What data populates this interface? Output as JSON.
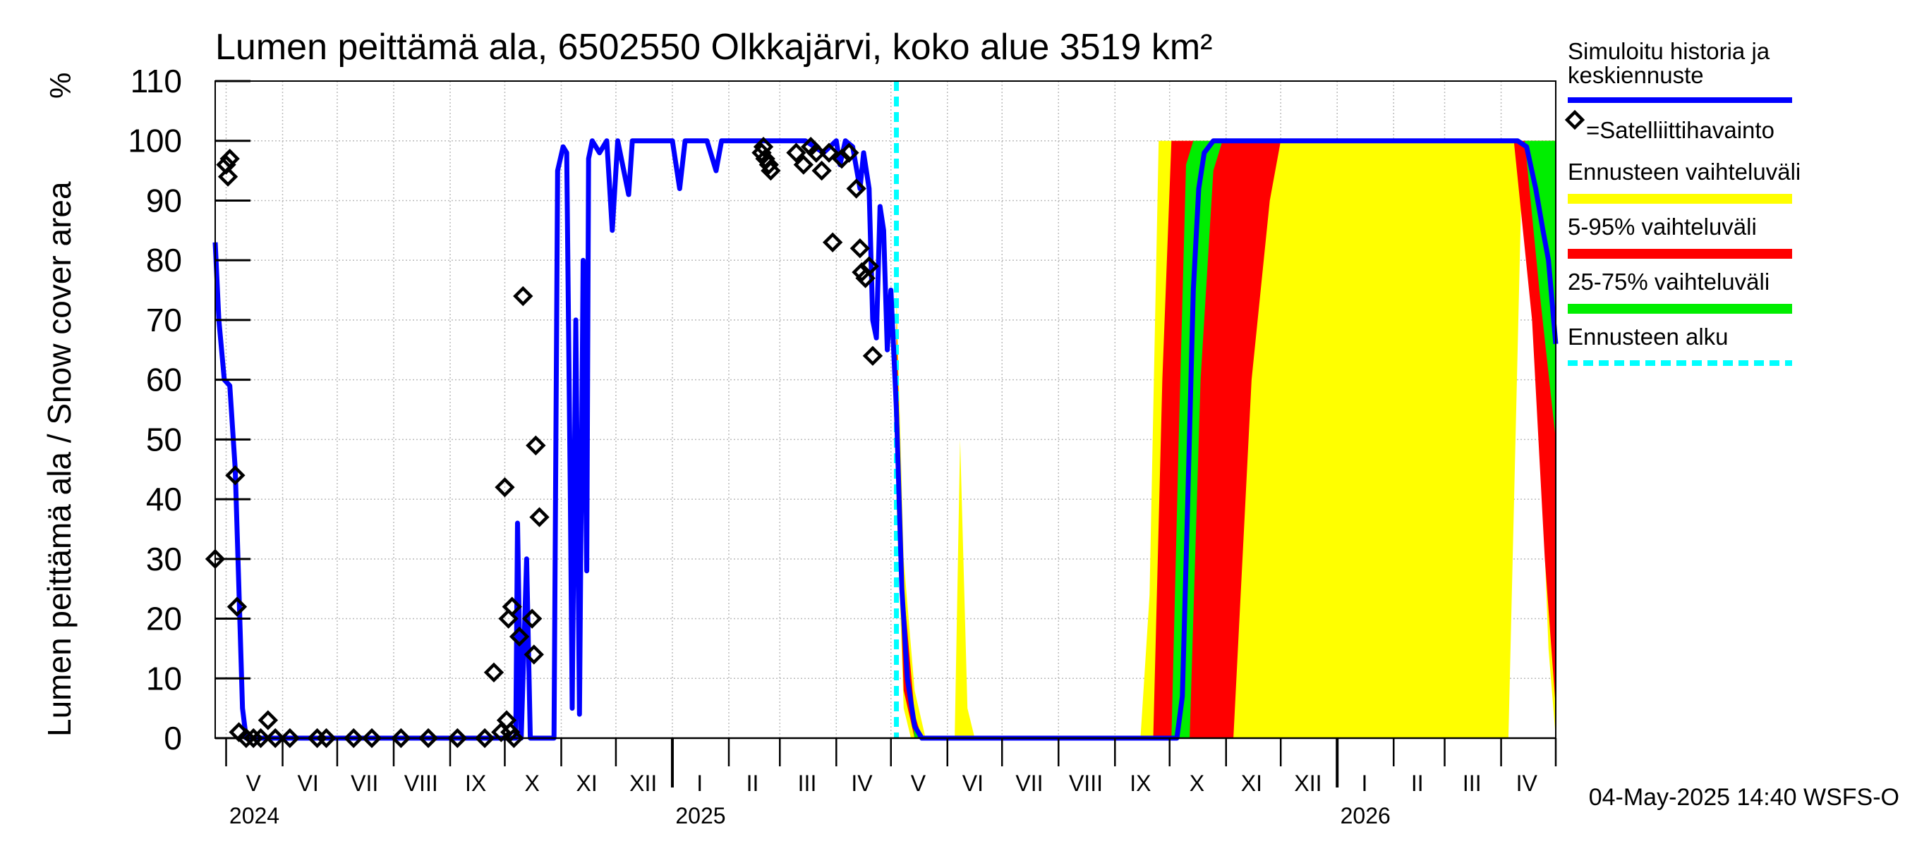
{
  "chart_data": {
    "type": "area",
    "title": "Lumen peittämä ala, 6502550 Olkkajärvi, koko alue 3519 km²",
    "ylabel": "Lumen peittämä ala / Snow cover area",
    "yunit": "%",
    "ylim": [
      0,
      110
    ],
    "yticks": [
      0,
      10,
      20,
      30,
      40,
      50,
      60,
      70,
      80,
      90,
      100,
      110
    ],
    "xlim": [
      "2024-04-25",
      "2026-05-01"
    ],
    "month_labels": [
      {
        "label": "V",
        "date": "2024-05-16"
      },
      {
        "label": "VI",
        "date": "2024-06-15"
      },
      {
        "label": "VII",
        "date": "2024-07-16"
      },
      {
        "label": "VIII",
        "date": "2024-08-16"
      },
      {
        "label": "IX",
        "date": "2024-09-15"
      },
      {
        "label": "X",
        "date": "2024-10-16"
      },
      {
        "label": "XI",
        "date": "2024-11-15"
      },
      {
        "label": "XII",
        "date": "2024-12-16"
      },
      {
        "label": "I",
        "date": "2025-01-16"
      },
      {
        "label": "II",
        "date": "2025-02-14"
      },
      {
        "label": "III",
        "date": "2025-03-16"
      },
      {
        "label": "IV",
        "date": "2025-04-15"
      },
      {
        "label": "V",
        "date": "2025-05-16"
      },
      {
        "label": "VI",
        "date": "2025-06-15"
      },
      {
        "label": "VII",
        "date": "2025-07-16"
      },
      {
        "label": "VIII",
        "date": "2025-08-16"
      },
      {
        "label": "IX",
        "date": "2025-09-15"
      },
      {
        "label": "X",
        "date": "2025-10-16"
      },
      {
        "label": "XI",
        "date": "2025-11-15"
      },
      {
        "label": "XII",
        "date": "2025-12-16"
      },
      {
        "label": "I",
        "date": "2026-01-16"
      },
      {
        "label": "II",
        "date": "2026-02-14"
      },
      {
        "label": "III",
        "date": "2026-03-16"
      },
      {
        "label": "IV",
        "date": "2026-04-15"
      }
    ],
    "year_labels": [
      {
        "label": "2024",
        "date": "2024-05-01"
      },
      {
        "label": "2025",
        "date": "2025-01-01"
      },
      {
        "label": "2026",
        "date": "2026-01-01"
      }
    ],
    "forecast_start": "2025-05-04",
    "legend": [
      {
        "label": "Simuloitu historia ja keskiennuste",
        "color": "#0000ff",
        "kind": "line"
      },
      {
        "label": "=Satelliittihavainto",
        "color": "#000000",
        "kind": "diamond"
      },
      {
        "label": "Ennusteen vaihteluväli",
        "color": "#ffff00",
        "kind": "band"
      },
      {
        "label": "5-95% vaihteluväli",
        "color": "#ff0000",
        "kind": "band"
      },
      {
        "label": "25-75% vaihteluväli",
        "color": "#00ee00",
        "kind": "band"
      },
      {
        "label": "Ennusteen alku",
        "color": "#00ffff",
        "kind": "dashed"
      }
    ],
    "legend_position": "right",
    "grid": true,
    "footer": "04-May-2025 14:40 WSFS-O",
    "series": [
      {
        "name": "Simuloitu historia ja keskiennuste",
        "points": [
          [
            "2024-04-25",
            83
          ],
          [
            "2024-04-27",
            70
          ],
          [
            "2024-04-30",
            60
          ],
          [
            "2024-05-03",
            59
          ],
          [
            "2024-05-06",
            45
          ],
          [
            "2024-05-08",
            25
          ],
          [
            "2024-05-10",
            5
          ],
          [
            "2024-05-12",
            0
          ],
          [
            "2024-10-07",
            0
          ],
          [
            "2024-10-08",
            36
          ],
          [
            "2024-10-10",
            0
          ],
          [
            "2024-10-13",
            30
          ],
          [
            "2024-10-15",
            0
          ],
          [
            "2024-10-28",
            0
          ],
          [
            "2024-10-30",
            95
          ],
          [
            "2024-11-02",
            99
          ],
          [
            "2024-11-04",
            98
          ],
          [
            "2024-11-06",
            40
          ],
          [
            "2024-11-07",
            5
          ],
          [
            "2024-11-09",
            70
          ],
          [
            "2024-11-11",
            4
          ],
          [
            "2024-11-13",
            80
          ],
          [
            "2024-11-15",
            28
          ],
          [
            "2024-11-16",
            97
          ],
          [
            "2024-11-18",
            100
          ],
          [
            "2024-11-22",
            98
          ],
          [
            "2024-11-26",
            100
          ],
          [
            "2024-11-29",
            85
          ],
          [
            "2024-12-02",
            100
          ],
          [
            "2024-12-08",
            91
          ],
          [
            "2024-12-10",
            100
          ],
          [
            "2024-12-20",
            100
          ],
          [
            "2025-01-01",
            100
          ],
          [
            "2025-01-05",
            92
          ],
          [
            "2025-01-08",
            100
          ],
          [
            "2025-01-20",
            100
          ],
          [
            "2025-01-25",
            95
          ],
          [
            "2025-01-28",
            100
          ],
          [
            "2025-03-15",
            100
          ],
          [
            "2025-03-25",
            98
          ],
          [
            "2025-04-01",
            100
          ],
          [
            "2025-04-03",
            96
          ],
          [
            "2025-04-06",
            100
          ],
          [
            "2025-04-10",
            99
          ],
          [
            "2025-04-14",
            92
          ],
          [
            "2025-04-16",
            98
          ],
          [
            "2025-04-19",
            92
          ],
          [
            "2025-04-21",
            70
          ],
          [
            "2025-04-23",
            67
          ],
          [
            "2025-04-25",
            89
          ],
          [
            "2025-04-27",
            85
          ],
          [
            "2025-04-29",
            65
          ],
          [
            "2025-05-01",
            75
          ],
          [
            "2025-05-04",
            55
          ],
          [
            "2025-05-07",
            25
          ],
          [
            "2025-05-10",
            10
          ],
          [
            "2025-05-14",
            2
          ],
          [
            "2025-05-18",
            0
          ],
          [
            "2025-10-05",
            0
          ],
          [
            "2025-10-08",
            7
          ],
          [
            "2025-10-11",
            40
          ],
          [
            "2025-10-14",
            75
          ],
          [
            "2025-10-17",
            92
          ],
          [
            "2025-10-20",
            98
          ],
          [
            "2025-10-25",
            100
          ],
          [
            "2026-04-10",
            100
          ],
          [
            "2026-04-15",
            99
          ],
          [
            "2026-04-20",
            92
          ],
          [
            "2026-04-24",
            85
          ],
          [
            "2026-04-27",
            80
          ],
          [
            "2026-05-01",
            66
          ]
        ]
      },
      {
        "name": "=Satelliittihavainto",
        "points": [
          [
            "2024-04-25",
            30
          ],
          [
            "2024-05-01",
            96
          ],
          [
            "2024-05-02",
            94
          ],
          [
            "2024-05-03",
            97
          ],
          [
            "2024-05-06",
            44
          ],
          [
            "2024-05-07",
            22
          ],
          [
            "2024-05-08",
            1
          ],
          [
            "2024-05-12",
            0
          ],
          [
            "2024-05-16",
            0
          ],
          [
            "2024-05-20",
            0
          ],
          [
            "2024-05-24",
            3
          ],
          [
            "2024-05-28",
            0
          ],
          [
            "2024-06-05",
            0
          ],
          [
            "2024-06-20",
            0
          ],
          [
            "2024-06-25",
            0
          ],
          [
            "2024-07-10",
            0
          ],
          [
            "2024-07-20",
            0
          ],
          [
            "2024-08-05",
            0
          ],
          [
            "2024-08-20",
            0
          ],
          [
            "2024-09-05",
            0
          ],
          [
            "2024-09-20",
            0
          ],
          [
            "2024-09-25",
            11
          ],
          [
            "2024-09-29",
            1
          ],
          [
            "2024-10-01",
            42
          ],
          [
            "2024-10-02",
            3
          ],
          [
            "2024-10-03",
            20
          ],
          [
            "2024-10-04",
            1
          ],
          [
            "2024-10-05",
            22
          ],
          [
            "2024-10-06",
            0
          ],
          [
            "2024-10-09",
            17
          ],
          [
            "2024-10-11",
            74
          ],
          [
            "2024-10-16",
            20
          ],
          [
            "2024-10-17",
            14
          ],
          [
            "2024-10-18",
            49
          ],
          [
            "2024-10-20",
            37
          ],
          [
            "2025-02-19",
            98
          ],
          [
            "2025-02-20",
            99
          ],
          [
            "2025-02-21",
            97
          ],
          [
            "2025-02-23",
            96
          ],
          [
            "2025-02-24",
            95
          ],
          [
            "2025-03-10",
            98
          ],
          [
            "2025-03-14",
            96
          ],
          [
            "2025-03-18",
            99
          ],
          [
            "2025-03-21",
            98
          ],
          [
            "2025-03-24",
            95
          ],
          [
            "2025-03-28",
            98
          ],
          [
            "2025-03-30",
            83
          ],
          [
            "2025-04-04",
            97
          ],
          [
            "2025-04-08",
            98
          ],
          [
            "2025-04-12",
            92
          ],
          [
            "2025-04-14",
            82
          ],
          [
            "2025-04-15",
            78
          ],
          [
            "2025-04-17",
            77
          ],
          [
            "2025-04-19",
            79
          ],
          [
            "2025-04-21",
            64
          ]
        ]
      },
      {
        "name": "Ennusteen vaihteluväli",
        "lower": [
          [
            "2025-05-04",
            40
          ],
          [
            "2025-05-08",
            5
          ],
          [
            "2025-05-12",
            0
          ],
          [
            "2026-04-05",
            0
          ],
          [
            "2026-04-12",
            90
          ],
          [
            "2026-04-20",
            70
          ],
          [
            "2026-04-27",
            15
          ],
          [
            "2026-05-01",
            0
          ]
        ],
        "upper": [
          [
            "2025-05-04",
            75
          ],
          [
            "2025-05-08",
            30
          ],
          [
            "2025-05-14",
            8
          ],
          [
            "2025-05-20",
            0
          ],
          [
            "2025-06-05",
            0
          ],
          [
            "2025-06-08",
            50
          ],
          [
            "2025-06-12",
            5
          ],
          [
            "2025-06-16",
            0
          ],
          [
            "2025-09-15",
            0
          ],
          [
            "2025-09-20",
            24
          ],
          [
            "2025-09-25",
            100
          ],
          [
            "2026-05-01",
            100
          ]
        ]
      },
      {
        "name": "5-95% vaihteluväli",
        "lower": [
          [
            "2025-05-04",
            45
          ],
          [
            "2025-05-08",
            8
          ],
          [
            "2025-05-14",
            0
          ],
          [
            "2025-11-05",
            0
          ],
          [
            "2025-11-15",
            60
          ],
          [
            "2025-11-25",
            90
          ],
          [
            "2025-12-01",
            100
          ],
          [
            "2026-04-08",
            100
          ],
          [
            "2026-04-18",
            70
          ],
          [
            "2026-04-25",
            30
          ],
          [
            "2026-05-01",
            5
          ]
        ],
        "upper": [
          [
            "2025-05-04",
            70
          ],
          [
            "2025-05-08",
            25
          ],
          [
            "2025-05-14",
            4
          ],
          [
            "2025-05-18",
            0
          ],
          [
            "2025-09-22",
            0
          ],
          [
            "2025-09-27",
            60
          ],
          [
            "2025-10-02",
            100
          ],
          [
            "2026-05-01",
            100
          ]
        ]
      },
      {
        "name": "25-75% vaihteluväli",
        "lower": [
          [
            "2025-05-04",
            55
          ],
          [
            "2025-05-08",
            15
          ],
          [
            "2025-05-14",
            0
          ],
          [
            "2025-10-12",
            0
          ],
          [
            "2025-10-18",
            60
          ],
          [
            "2025-10-25",
            95
          ],
          [
            "2025-10-30",
            100
          ],
          [
            "2026-04-14",
            100
          ],
          [
            "2026-04-22",
            75
          ],
          [
            "2026-05-01",
            50
          ]
        ],
        "upper": [
          [
            "2025-05-04",
            65
          ],
          [
            "2025-05-08",
            20
          ],
          [
            "2025-05-14",
            2
          ],
          [
            "2025-05-16",
            0
          ],
          [
            "2025-10-02",
            0
          ],
          [
            "2025-10-06",
            50
          ],
          [
            "2025-10-10",
            96
          ],
          [
            "2025-10-14",
            100
          ],
          [
            "2026-05-01",
            100
          ]
        ]
      }
    ]
  }
}
